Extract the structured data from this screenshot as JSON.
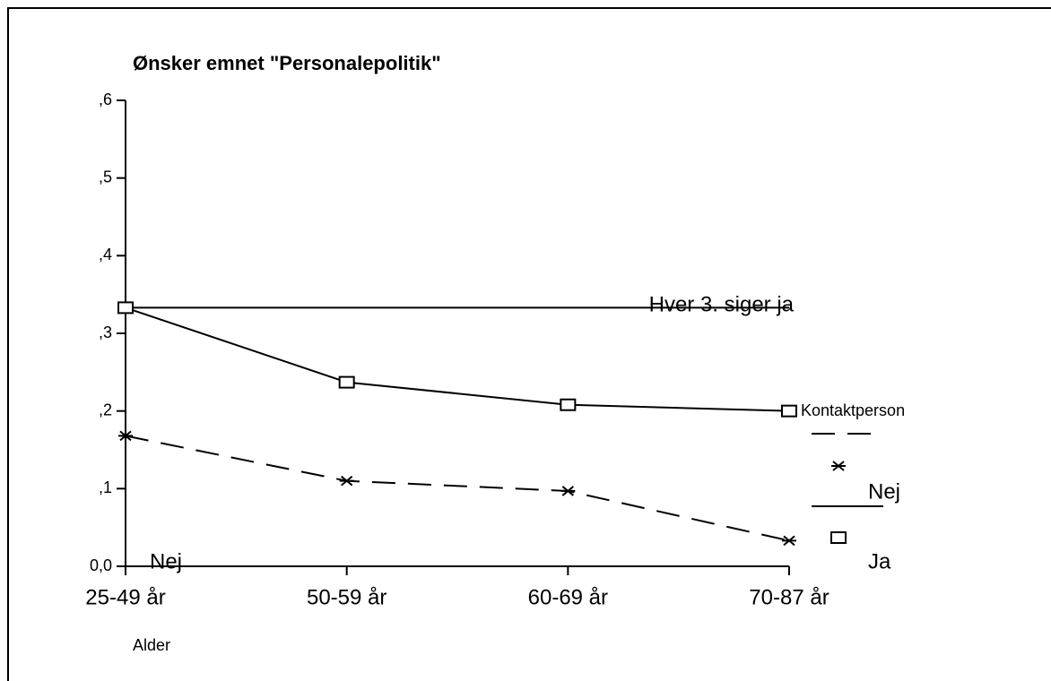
{
  "chart_data": {
    "type": "line",
    "title": "Ønsker emnet \"Personalepolitik\"",
    "x_label": "Alder",
    "categories": [
      "25-49 år",
      "50-59 år",
      "60-69 år",
      "70-87 år"
    ],
    "series": [
      {
        "name": "Nej",
        "color": "#000000",
        "dash": true,
        "marker": "asterisk",
        "values": [
          0.168,
          0.11,
          0.097,
          0.033
        ]
      },
      {
        "name": "Ja",
        "color": "#000000",
        "dash": false,
        "marker": "square",
        "values": [
          0.333,
          0.237,
          0.208,
          0.2
        ]
      }
    ],
    "legend_title": "Kontaktperson",
    "reference_line": {
      "value": 0.333,
      "label": "Hver 3. siger ja"
    },
    "annotation": "Nej",
    "ylim": [
      0,
      0.6
    ],
    "yticks": [
      {
        "value": 0,
        "label": "0,0"
      },
      {
        "value": 0.1,
        "label": ",1"
      },
      {
        "value": 0.2,
        "label": ",2"
      },
      {
        "value": 0.3,
        "label": ",3"
      },
      {
        "value": 0.4,
        "label": ",4"
      },
      {
        "value": 0.5,
        "label": ",5"
      },
      {
        "value": 0.6,
        "label": ",6"
      }
    ]
  }
}
